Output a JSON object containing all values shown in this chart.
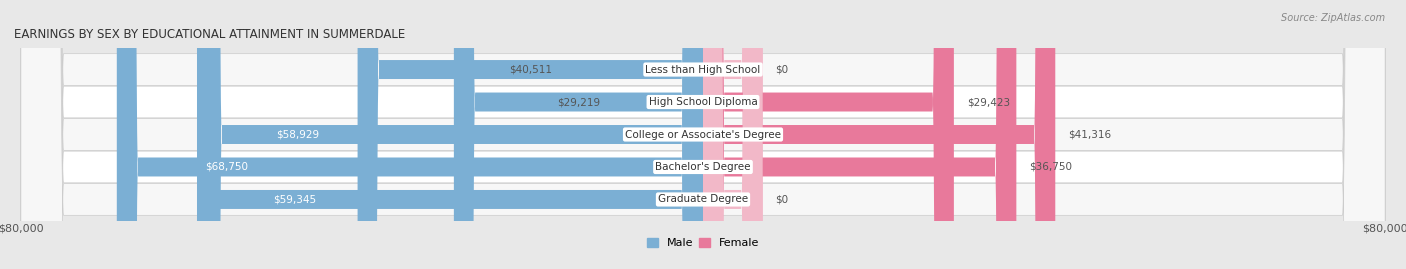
{
  "title": "EARNINGS BY SEX BY EDUCATIONAL ATTAINMENT IN SUMMERDALE",
  "source": "Source: ZipAtlas.com",
  "categories": [
    "Less than High School",
    "High School Diploma",
    "College or Associate's Degree",
    "Bachelor's Degree",
    "Graduate Degree"
  ],
  "male_values": [
    40511,
    29219,
    58929,
    68750,
    59345
  ],
  "female_values": [
    0,
    29423,
    41316,
    36750,
    0
  ],
  "female_stub_value": 7000,
  "male_color": "#7bafd4",
  "female_color": "#e8799b",
  "female_stub_color": "#f2b8c8",
  "max_value": 80000,
  "bg_color": "#e8e8e8",
  "row_even_color": "#f7f7f7",
  "row_odd_color": "#ffffff",
  "title_fontsize": 8.5,
  "axis_label_fontsize": 8,
  "bar_label_fontsize": 7.5,
  "category_fontsize": 7.5,
  "legend_fontsize": 8,
  "inside_label_threshold": 45000
}
